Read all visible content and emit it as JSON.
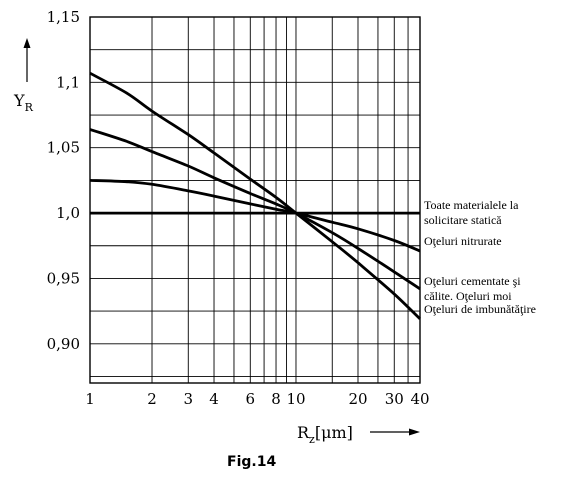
{
  "caption": "Fig.14",
  "chart_data": {
    "type": "line",
    "x_scale": "log",
    "xlim": [
      1,
      40
    ],
    "ylim": [
      0.87,
      1.15
    ],
    "x_ticks": [
      1,
      2,
      3,
      4,
      6,
      8,
      10,
      20,
      30,
      40
    ],
    "x_tick_labels": [
      "1",
      "2",
      "3",
      "4",
      "6",
      "8",
      "10",
      "20",
      "30",
      "40"
    ],
    "y_ticks": [
      0.9,
      0.95,
      1.0,
      1.05,
      1.1,
      1.15
    ],
    "y_tick_labels": [
      "0,90",
      "0,95",
      "1,0",
      "1,05",
      "1,1",
      "1,15"
    ],
    "x_minor_gridlines": [
      5,
      7,
      9,
      15,
      25,
      35
    ],
    "y_minor_gridlines": [
      0.875,
      0.925,
      0.975,
      1.025,
      1.075,
      1.125
    ],
    "grid": true,
    "ylabel": {
      "main": "Y",
      "sub": "R",
      "arrow": "up"
    },
    "xlabel": {
      "main": "R",
      "sub": "z",
      "unit": "[μm]",
      "arrow": "right"
    },
    "series": [
      {
        "name_lines": [
          "Toate materialele la",
          "solicitare statică"
        ],
        "points": [
          [
            1,
            1.0
          ],
          [
            40,
            1.0
          ]
        ]
      },
      {
        "name_lines": [
          "Oţeluri nitrurate"
        ],
        "points": [
          [
            1,
            1.025
          ],
          [
            1.5,
            1.024
          ],
          [
            2,
            1.022
          ],
          [
            3,
            1.017
          ],
          [
            4,
            1.013
          ],
          [
            6,
            1.007
          ],
          [
            8,
            1.003
          ],
          [
            10,
            1.0
          ],
          [
            15,
            0.993
          ],
          [
            20,
            0.988
          ],
          [
            30,
            0.979
          ],
          [
            40,
            0.971
          ]
        ]
      },
      {
        "name_lines": [
          "Oţeluri cementate şi",
          "călite. Oţeluri moi"
        ],
        "points": [
          [
            1,
            1.064
          ],
          [
            1.5,
            1.055
          ],
          [
            2,
            1.047
          ],
          [
            3,
            1.036
          ],
          [
            4,
            1.027
          ],
          [
            6,
            1.015
          ],
          [
            8,
            1.007
          ],
          [
            10,
            1.0
          ],
          [
            15,
            0.985
          ],
          [
            20,
            0.973
          ],
          [
            30,
            0.955
          ],
          [
            40,
            0.942
          ]
        ]
      },
      {
        "name_lines": [
          "Oţeluri de imbunătăţire"
        ],
        "points": [
          [
            1,
            1.107
          ],
          [
            1.5,
            1.092
          ],
          [
            2,
            1.078
          ],
          [
            3,
            1.06
          ],
          [
            4,
            1.046
          ],
          [
            6,
            1.026
          ],
          [
            8,
            1.012
          ],
          [
            10,
            1.0
          ],
          [
            15,
            0.978
          ],
          [
            20,
            0.962
          ],
          [
            30,
            0.938
          ],
          [
            40,
            0.919
          ]
        ]
      }
    ]
  }
}
